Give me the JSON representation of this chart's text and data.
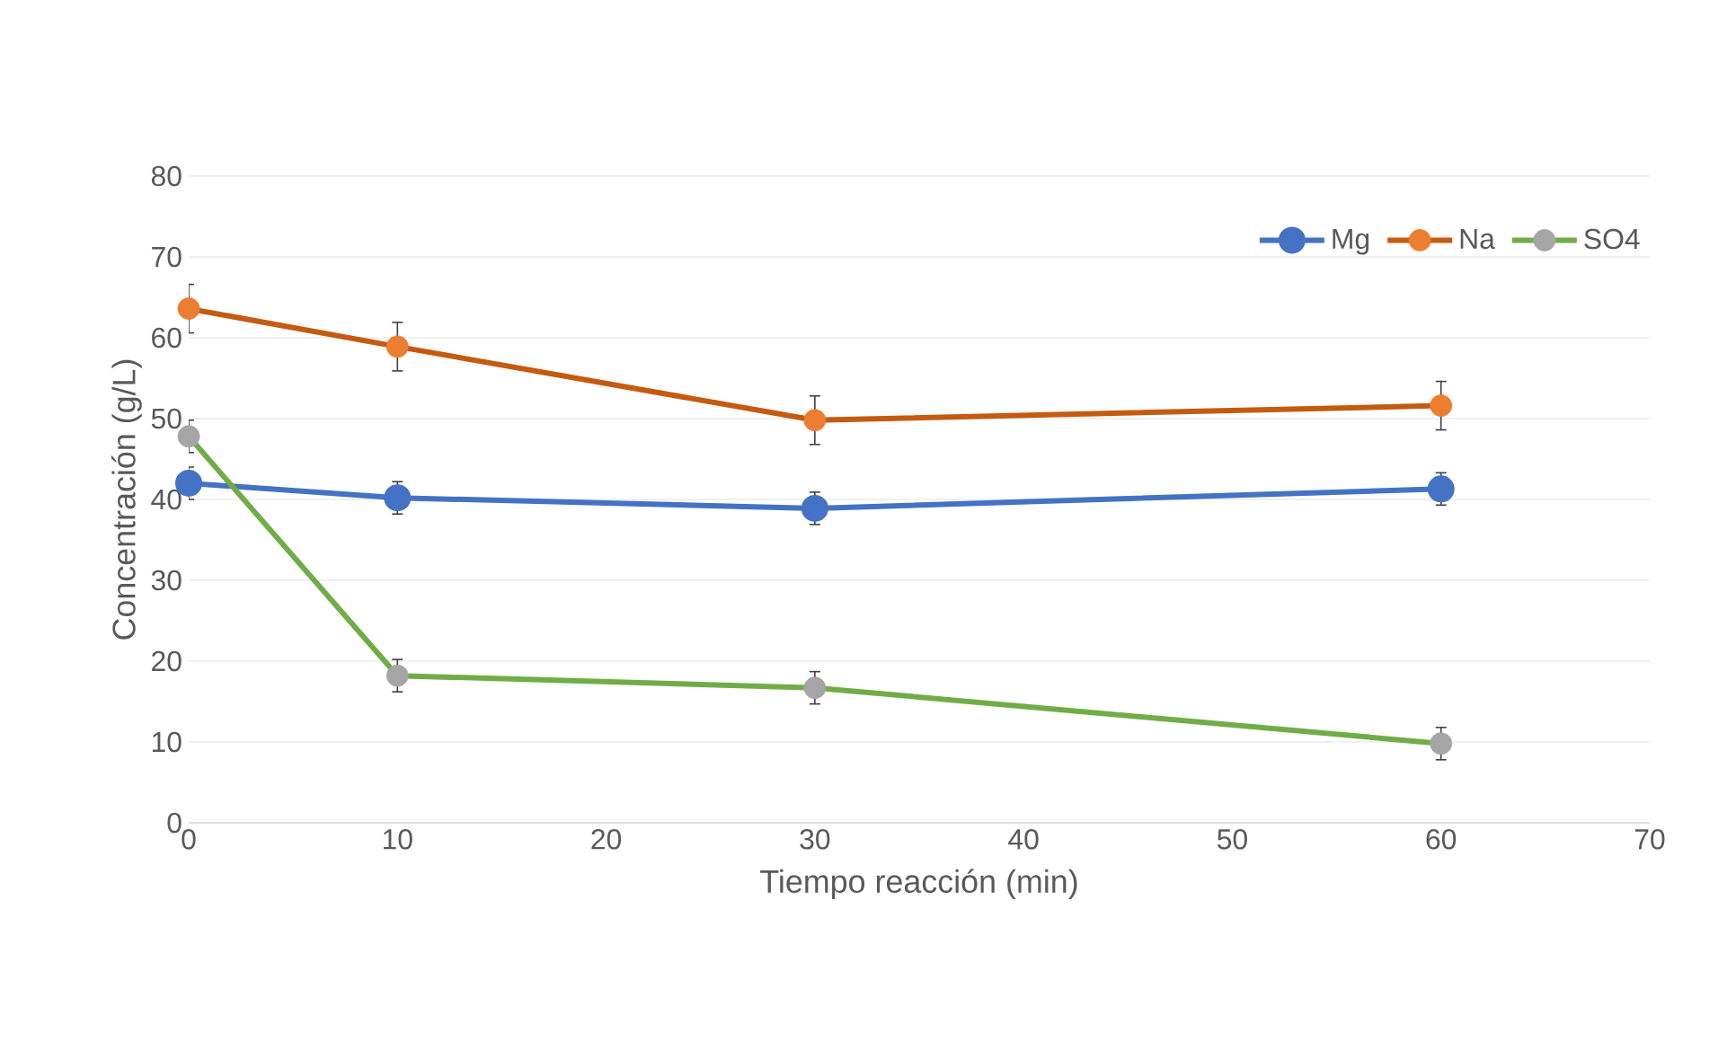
{
  "chart_data": {
    "type": "line",
    "xlabel": "Tiempo reacción (min)",
    "ylabel": "Concentración (g/L)",
    "x": [
      0,
      10,
      30,
      60
    ],
    "series": [
      {
        "name": "Mg",
        "color": "#4472c4",
        "values": [
          42.0,
          40.2,
          38.9,
          41.3
        ],
        "errors": [
          2,
          2,
          2,
          2
        ]
      },
      {
        "name": "Na",
        "color": "#c55a11",
        "colors": [
          "#ed7d31",
          "#ed7d31",
          "#ed7d31",
          "#ed7d31"
        ],
        "values": [
          63.6,
          58.9,
          49.8,
          51.6
        ],
        "errors": [
          3,
          3,
          3,
          3
        ]
      },
      {
        "name": "SO4",
        "color": "#70ad47",
        "colors": [
          "#a5a5a5",
          "#a5a5a5",
          "#a5a5a5",
          "#a5a5a5"
        ],
        "values": [
          47.8,
          18.2,
          16.7,
          9.8
        ],
        "errors": [
          2,
          2,
          2,
          2
        ]
      }
    ],
    "xlim": [
      0,
      70
    ],
    "xticks": [
      0,
      10,
      20,
      30,
      40,
      50,
      60,
      70
    ],
    "ylim": [
      0,
      80
    ],
    "yticks": [
      0,
      10,
      20,
      30,
      40,
      50,
      60,
      70,
      80
    ],
    "grid": "y",
    "legend": "top right",
    "marker": "circle",
    "line_style": "solid"
  }
}
